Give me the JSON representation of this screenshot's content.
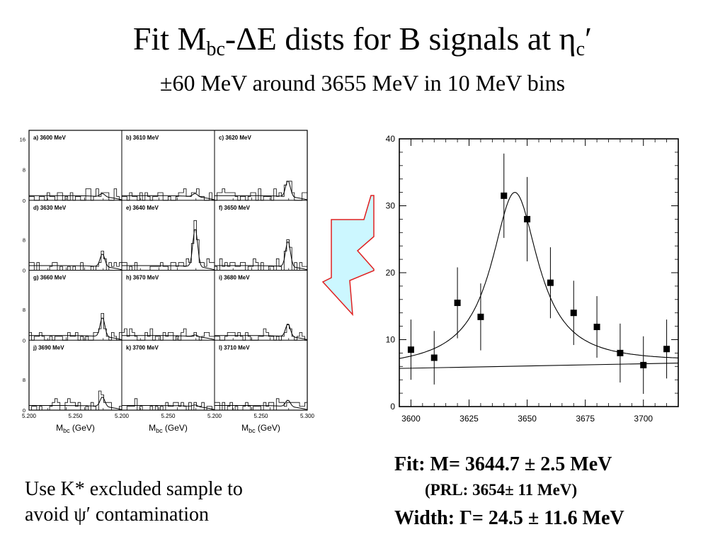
{
  "title": {
    "prefix": "Fit M",
    "sub1": "bc",
    "mid": "-ΔE dists for B signals at η",
    "sub2": "c",
    "suffix": "′"
  },
  "subtitle": "±60 MeV around 3655 MeV in 10 MeV bins",
  "fit_text": {
    "mass": "Fit: M= 3644.7 ± 2.5 MeV",
    "prl": "(PRL: 3654± 11 MeV)",
    "width": "Width: Γ= 24.5 ± 11.6 MeV"
  },
  "note": {
    "line1": "Use K* excluded sample to",
    "line2": "avoid ψ′ contamination"
  },
  "arrow": {
    "fill": "#ccf7ff",
    "stroke": "#e02020"
  },
  "chart_data": [
    {
      "type": "scatter",
      "title": "",
      "xlabel": "",
      "ylabel": "",
      "xlim": [
        3595,
        3715
      ],
      "ylim": [
        0,
        40
      ],
      "xticks": [
        3600,
        3625,
        3650,
        3675,
        3700
      ],
      "yticks": [
        0,
        10,
        20,
        30,
        40
      ],
      "series": [
        {
          "x": [
            3600,
            3610,
            3620,
            3630,
            3640,
            3650,
            3660,
            3670,
            3680,
            3690,
            3700,
            3710
          ],
          "y": [
            8.5,
            7.3,
            15.5,
            13.4,
            31.5,
            28.0,
            18.5,
            14.0,
            11.9,
            8.0,
            6.2,
            8.6
          ],
          "yerr": [
            4.5,
            4.0,
            5.3,
            5.0,
            6.3,
            6.3,
            5.3,
            4.8,
            4.6,
            4.4,
            4.3,
            4.4
          ]
        }
      ],
      "fit_curve": {
        "model": "breit-wigner plus linear background",
        "mass": 3644.7,
        "width": 24.5,
        "background_at_3595": 5.7,
        "background_at_3715": 6.5,
        "peak_height": 32
      }
    },
    {
      "type": "histogram-grid",
      "xlabel": "M_bc (GeV)",
      "xticks": [
        "5.200",
        "5.250",
        "5.300"
      ],
      "yticks": [
        "0",
        "8",
        "16"
      ],
      "panels": [
        {
          "label": "a) 3600 MeV",
          "peak": 1
        },
        {
          "label": "b) 3610 MeV",
          "peak": 1
        },
        {
          "label": "c) 3620 MeV",
          "peak": 5
        },
        {
          "label": "d) 3630 MeV",
          "peak": 4
        },
        {
          "label": "e) 3640 MeV",
          "peak": 12
        },
        {
          "label": "f) 3650 MeV",
          "peak": 8
        },
        {
          "label": "g) 3660 MeV",
          "peak": 6
        },
        {
          "label": "h) 3670 MeV",
          "peak": 0.5
        },
        {
          "label": "i) 3680 MeV",
          "peak": 4
        },
        {
          "label": "j) 3690 MeV",
          "peak": 3
        },
        {
          "label": "k) 3700 MeV",
          "peak": 0.5
        },
        {
          "label": "l) 3710 MeV",
          "peak": 2
        }
      ]
    }
  ]
}
